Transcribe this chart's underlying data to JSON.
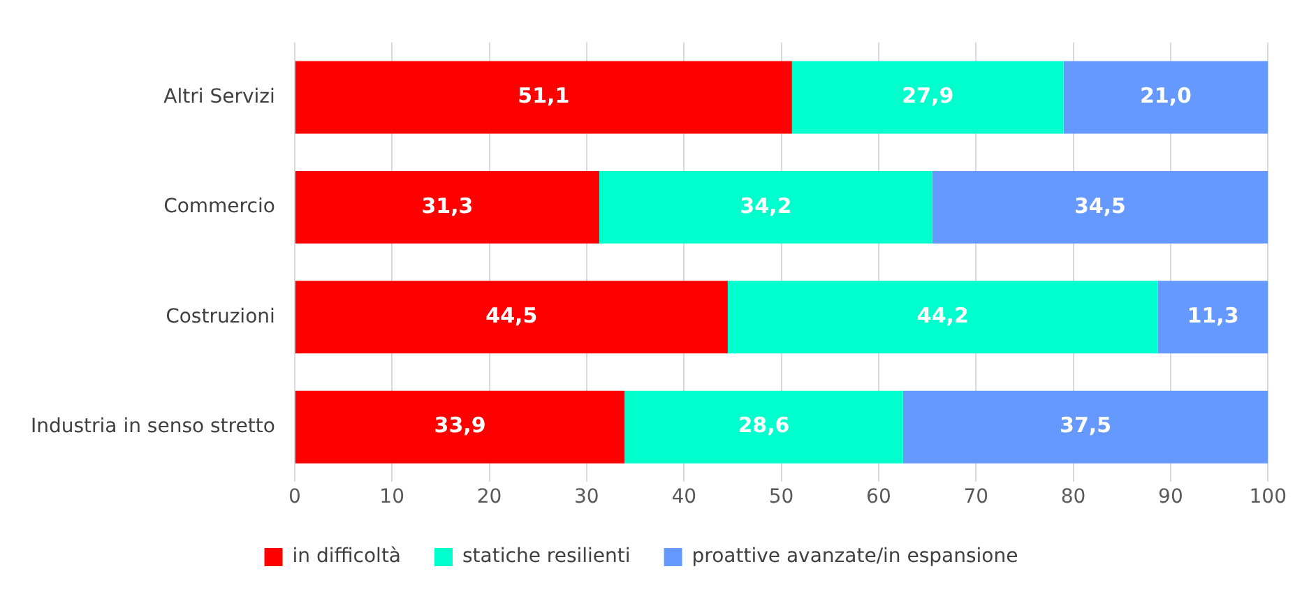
{
  "chart_data": {
    "type": "bar",
    "orientation": "horizontal",
    "stacked": true,
    "categories": [
      "Altri Servizi",
      "Commercio",
      "Costruzioni",
      "Industria in senso stretto"
    ],
    "series": [
      {
        "name": "in difficoltà",
        "color": "#ff0000",
        "values": [
          51.1,
          31.3,
          44.5,
          33.9
        ],
        "value_labels": [
          "51,1",
          "31,3",
          "44,5",
          "33,9"
        ]
      },
      {
        "name": "statiche resilienti",
        "color": "#00ffcc",
        "values": [
          27.9,
          34.2,
          44.2,
          28.6
        ],
        "value_labels": [
          "27,9",
          "34,2",
          "44,2",
          "28,6"
        ]
      },
      {
        "name": "proattive avanzate/in espansione",
        "color": "#6699ff",
        "values": [
          21.0,
          34.5,
          11.3,
          37.5
        ],
        "value_labels": [
          "21,0",
          "34,5",
          "11,3",
          "37,5"
        ]
      }
    ],
    "xlim": [
      0,
      100
    ],
    "xticks": [
      0,
      10,
      20,
      30,
      40,
      50,
      60,
      70,
      80,
      90,
      100
    ],
    "grid": "x",
    "legend": "bottom"
  }
}
